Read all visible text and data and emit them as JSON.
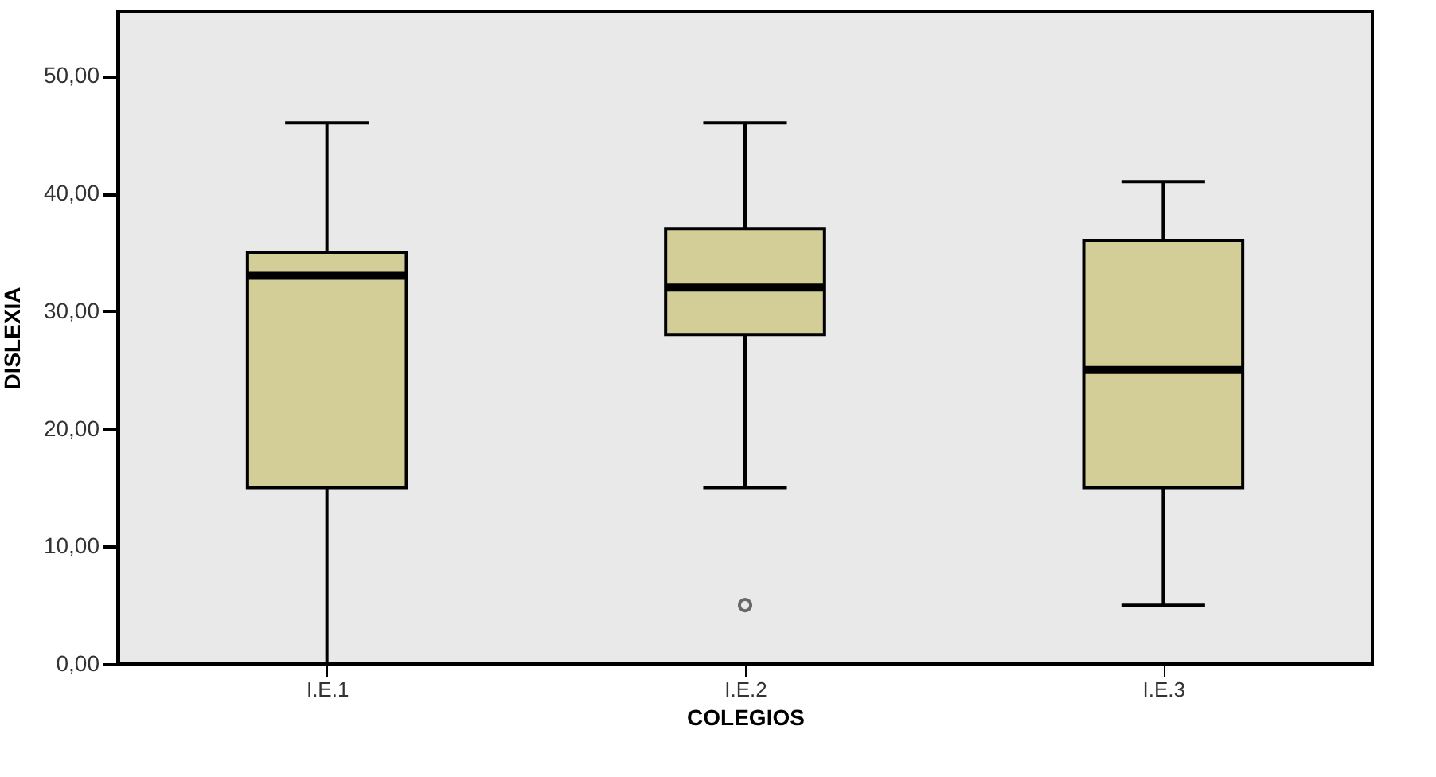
{
  "chart_data": {
    "type": "box",
    "xlabel": "COLEGIOS",
    "ylabel": "DISLEXIA",
    "categories": [
      "I.E.1",
      "I.E.2",
      "I.E.3"
    ],
    "color": "#d3ce98",
    "boxes": [
      {
        "low": 0,
        "q1": 15,
        "median": 33,
        "q3": 35,
        "high": 46
      },
      {
        "low": 15,
        "q1": 28,
        "median": 32,
        "q3": 37,
        "high": 46,
        "outliers": [
          5
        ]
      },
      {
        "low": 5,
        "q1": 15,
        "median": 25,
        "q3": 36,
        "high": 41
      }
    ],
    "ylim": [
      0,
      55.5
    ],
    "yticks": [
      {
        "value": 0,
        "label": "0,00"
      },
      {
        "value": 10,
        "label": "10,00"
      },
      {
        "value": 20,
        "label": "20,00"
      },
      {
        "value": 30,
        "label": "30,00"
      },
      {
        "value": 40,
        "label": "40,00"
      },
      {
        "value": 50,
        "label": "50,00"
      }
    ],
    "grid": false
  }
}
